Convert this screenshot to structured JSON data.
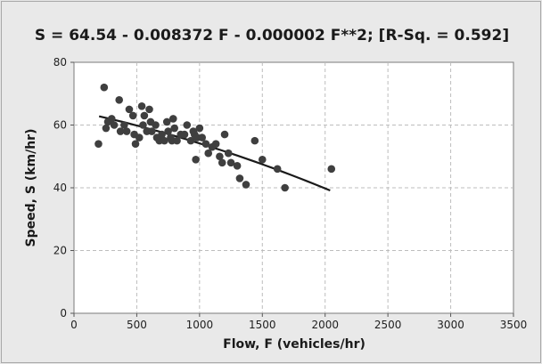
{
  "chart_data": {
    "type": "scatter",
    "title": "S =  64.54 - 0.008372 F - 0.000002 F**2; [R-Sq. = 0.592]",
    "xlabel": "Flow, F (vehicles/hr)",
    "ylabel": "Speed, S (km/hr)",
    "xlim": [
      0,
      3500
    ],
    "ylim": [
      0,
      80
    ],
    "xticks": [
      0,
      500,
      1000,
      1500,
      2000,
      2500,
      3000,
      3500
    ],
    "yticks": [
      0,
      20,
      40,
      60,
      80
    ],
    "grid": true,
    "legend": "none",
    "points": [
      [
        195,
        54
      ],
      [
        240,
        72
      ],
      [
        255,
        59
      ],
      [
        270,
        61
      ],
      [
        300,
        62
      ],
      [
        320,
        60
      ],
      [
        360,
        68
      ],
      [
        370,
        58
      ],
      [
        400,
        60
      ],
      [
        420,
        58
      ],
      [
        440,
        65
      ],
      [
        470,
        63
      ],
      [
        480,
        57
      ],
      [
        490,
        54
      ],
      [
        520,
        56
      ],
      [
        540,
        66
      ],
      [
        550,
        60
      ],
      [
        560,
        63
      ],
      [
        580,
        58
      ],
      [
        600,
        65
      ],
      [
        610,
        61
      ],
      [
        620,
        58
      ],
      [
        650,
        60
      ],
      [
        660,
        56
      ],
      [
        680,
        55
      ],
      [
        700,
        57
      ],
      [
        720,
        55
      ],
      [
        740,
        61
      ],
      [
        750,
        58
      ],
      [
        770,
        56
      ],
      [
        780,
        55
      ],
      [
        790,
        62
      ],
      [
        800,
        59
      ],
      [
        820,
        55
      ],
      [
        850,
        57
      ],
      [
        880,
        57
      ],
      [
        900,
        60
      ],
      [
        930,
        55
      ],
      [
        950,
        58
      ],
      [
        960,
        57
      ],
      [
        970,
        49
      ],
      [
        980,
        56
      ],
      [
        1000,
        59
      ],
      [
        1020,
        56
      ],
      [
        1050,
        54
      ],
      [
        1070,
        51
      ],
      [
        1100,
        53
      ],
      [
        1130,
        54
      ],
      [
        1160,
        50
      ],
      [
        1180,
        48
      ],
      [
        1200,
        57
      ],
      [
        1230,
        51
      ],
      [
        1250,
        48
      ],
      [
        1300,
        47
      ],
      [
        1320,
        43
      ],
      [
        1370,
        41
      ],
      [
        1440,
        55
      ],
      [
        1500,
        49
      ],
      [
        1620,
        46
      ],
      [
        1680,
        40
      ],
      [
        2050,
        46
      ]
    ],
    "fit_line": {
      "equation": "S = 64.54 - 0.008372 F - 0.000002 F**2",
      "x_range": [
        200,
        2040
      ],
      "color": "#1a1a1a"
    },
    "colors": {
      "background": "#e9e9e9",
      "plot_area": "#ffffff",
      "points": "#3f3f3f",
      "grid": "#bdbdbd"
    }
  }
}
